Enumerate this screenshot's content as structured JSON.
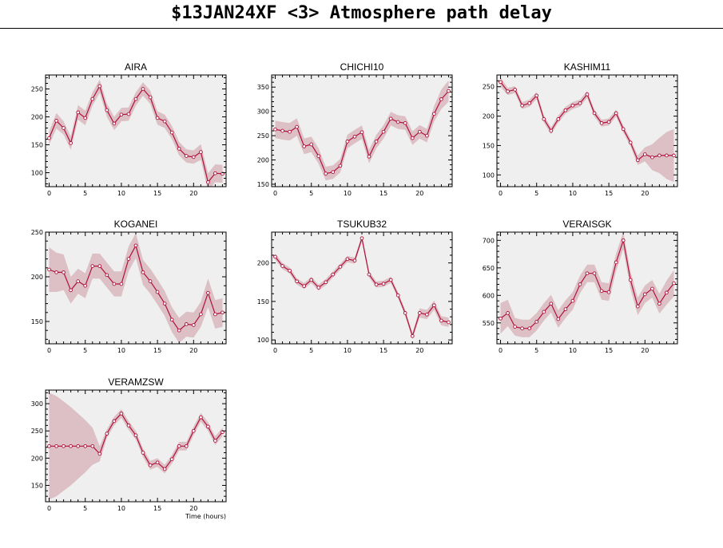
{
  "page": {
    "title": "$13JAN24XF <3>  Atmosphere path delay"
  },
  "colors": {
    "line": "#b0103a",
    "band": "#dcc0c5",
    "plot_bg": "#efefef",
    "axis": "#000000"
  },
  "chart_data": [
    {
      "type": "line",
      "title": "AIRA",
      "xlabel": "",
      "xlim": [
        -0.5,
        24.5
      ],
      "ylim": [
        75,
        275
      ],
      "xticks": [
        0,
        5,
        10,
        15,
        20
      ],
      "yticks": [
        100,
        150,
        200,
        250
      ],
      "x": [
        0,
        1,
        2,
        3,
        4,
        5,
        6,
        7,
        8,
        9,
        10,
        11,
        12,
        13,
        14,
        15,
        16,
        17,
        18,
        19,
        20,
        21,
        22,
        23,
        24
      ],
      "y": [
        162,
        193,
        180,
        153,
        208,
        198,
        232,
        255,
        212,
        188,
        204,
        205,
        232,
        250,
        235,
        198,
        192,
        172,
        143,
        130,
        128,
        137,
        83,
        99,
        98
      ],
      "band": [
        12,
        14,
        12,
        12,
        13,
        13,
        12,
        12,
        12,
        12,
        12,
        12,
        12,
        12,
        12,
        12,
        12,
        12,
        12,
        12,
        12,
        14,
        16,
        16,
        16
      ]
    },
    {
      "type": "line",
      "title": "CHICHI10",
      "xlabel": "",
      "xlim": [
        -0.5,
        24.5
      ],
      "ylim": [
        145,
        375
      ],
      "xticks": [
        0,
        5,
        10,
        15,
        20
      ],
      "yticks": [
        150,
        200,
        250,
        300,
        350
      ],
      "x": [
        0,
        1,
        2,
        3,
        4,
        5,
        6,
        7,
        8,
        9,
        10,
        11,
        12,
        13,
        14,
        15,
        16,
        17,
        18,
        19,
        20,
        21,
        22,
        23,
        24
      ],
      "y": [
        263,
        260,
        258,
        268,
        228,
        232,
        208,
        172,
        175,
        188,
        238,
        248,
        257,
        207,
        238,
        258,
        285,
        278,
        276,
        245,
        258,
        250,
        295,
        325,
        342
      ],
      "band": [
        18,
        18,
        18,
        18,
        16,
        16,
        16,
        14,
        14,
        14,
        14,
        14,
        14,
        14,
        14,
        14,
        14,
        14,
        14,
        14,
        14,
        14,
        16,
        20,
        22
      ]
    },
    {
      "type": "line",
      "title": "KASHIM11",
      "xlabel": "",
      "xlim": [
        -0.5,
        24.5
      ],
      "ylim": [
        80,
        270
      ],
      "xticks": [
        0,
        5,
        10,
        15,
        20
      ],
      "yticks": [
        100,
        150,
        200,
        250
      ],
      "x": [
        0,
        1,
        2,
        3,
        4,
        5,
        6,
        7,
        8,
        9,
        10,
        11,
        12,
        13,
        14,
        15,
        16,
        17,
        18,
        19,
        20,
        21,
        22,
        23,
        24
      ],
      "y": [
        258,
        242,
        245,
        218,
        222,
        235,
        195,
        175,
        195,
        210,
        218,
        222,
        237,
        205,
        188,
        190,
        205,
        178,
        155,
        125,
        135,
        130,
        133,
        133,
        133
      ],
      "band": [
        8,
        6,
        6,
        6,
        6,
        6,
        6,
        6,
        6,
        6,
        6,
        6,
        6,
        6,
        6,
        6,
        6,
        6,
        6,
        8,
        12,
        22,
        30,
        40,
        45
      ]
    },
    {
      "type": "line",
      "title": "KOGANEI",
      "xlabel": "",
      "xlim": [
        -0.5,
        24.5
      ],
      "ylim": [
        125,
        250
      ],
      "xticks": [
        0,
        5,
        10,
        15,
        20
      ],
      "yticks": [
        150,
        200,
        250
      ],
      "x": [
        0,
        1,
        2,
        3,
        4,
        5,
        6,
        7,
        8,
        9,
        10,
        11,
        12,
        13,
        14,
        15,
        16,
        17,
        18,
        19,
        20,
        21,
        22,
        23,
        24
      ],
      "y": [
        208,
        205,
        205,
        185,
        195,
        190,
        212,
        212,
        202,
        192,
        192,
        220,
        235,
        205,
        195,
        183,
        170,
        152,
        140,
        147,
        146,
        158,
        182,
        158,
        160
      ],
      "band": [
        25,
        22,
        20,
        15,
        14,
        14,
        14,
        14,
        14,
        14,
        14,
        14,
        14,
        14,
        14,
        14,
        14,
        14,
        14,
        14,
        14,
        14,
        16,
        16,
        16
      ]
    },
    {
      "type": "line",
      "title": "TSUKUB32",
      "xlabel": "",
      "xlim": [
        -0.5,
        24.5
      ],
      "ylim": [
        95,
        240
      ],
      "xticks": [
        0,
        5,
        10,
        15,
        20
      ],
      "yticks": [
        100,
        150,
        200
      ],
      "x": [
        0,
        1,
        2,
        3,
        4,
        5,
        6,
        7,
        8,
        9,
        10,
        11,
        12,
        13,
        14,
        15,
        16,
        17,
        18,
        19,
        20,
        21,
        22,
        23,
        24
      ],
      "y": [
        208,
        196,
        190,
        176,
        170,
        178,
        168,
        175,
        185,
        195,
        205,
        203,
        232,
        185,
        172,
        173,
        178,
        158,
        135,
        105,
        135,
        133,
        145,
        125,
        123
      ],
      "band": [
        4,
        4,
        4,
        4,
        4,
        4,
        4,
        4,
        4,
        4,
        4,
        4,
        4,
        4,
        4,
        4,
        4,
        4,
        4,
        4,
        6,
        6,
        6,
        6,
        6
      ]
    },
    {
      "type": "line",
      "title": "VERAISGK",
      "xlabel": "",
      "xlim": [
        -0.5,
        24.5
      ],
      "ylim": [
        512,
        715
      ],
      "xticks": [
        0,
        5,
        10,
        15,
        20
      ],
      "yticks": [
        550,
        600,
        650,
        700
      ],
      "x": [
        0,
        1,
        2,
        3,
        4,
        5,
        6,
        7,
        8,
        9,
        10,
        11,
        12,
        13,
        14,
        15,
        16,
        17,
        18,
        19,
        20,
        21,
        22,
        23,
        24
      ],
      "y": [
        558,
        568,
        543,
        540,
        540,
        552,
        570,
        585,
        557,
        575,
        590,
        620,
        640,
        640,
        608,
        606,
        660,
        700,
        628,
        580,
        602,
        612,
        585,
        605,
        622
      ],
      "band": [
        28,
        24,
        16,
        16,
        16,
        16,
        16,
        16,
        16,
        16,
        16,
        16,
        16,
        16,
        16,
        16,
        16,
        16,
        16,
        16,
        16,
        16,
        18,
        22,
        24
      ]
    },
    {
      "type": "line",
      "title": "VERAMZSW",
      "xlabel": "Time (hours)",
      "xlim": [
        -0.5,
        24.5
      ],
      "ylim": [
        120,
        325
      ],
      "xticks": [
        0,
        5,
        10,
        15,
        20
      ],
      "yticks": [
        150,
        200,
        250,
        300
      ],
      "x": [
        0,
        1,
        2,
        3,
        4,
        5,
        6,
        7,
        8,
        9,
        10,
        11,
        12,
        13,
        14,
        15,
        16,
        17,
        18,
        19,
        20,
        21,
        22,
        23,
        24
      ],
      "y": [
        222,
        222,
        222,
        222,
        222,
        222,
        222,
        208,
        245,
        268,
        282,
        260,
        242,
        210,
        187,
        192,
        180,
        198,
        222,
        222,
        250,
        275,
        258,
        232,
        248
      ],
      "band": [
        98,
        92,
        82,
        72,
        60,
        48,
        34,
        14,
        8,
        8,
        8,
        8,
        8,
        8,
        8,
        8,
        8,
        8,
        8,
        8,
        8,
        8,
        8,
        8,
        8
      ]
    }
  ]
}
